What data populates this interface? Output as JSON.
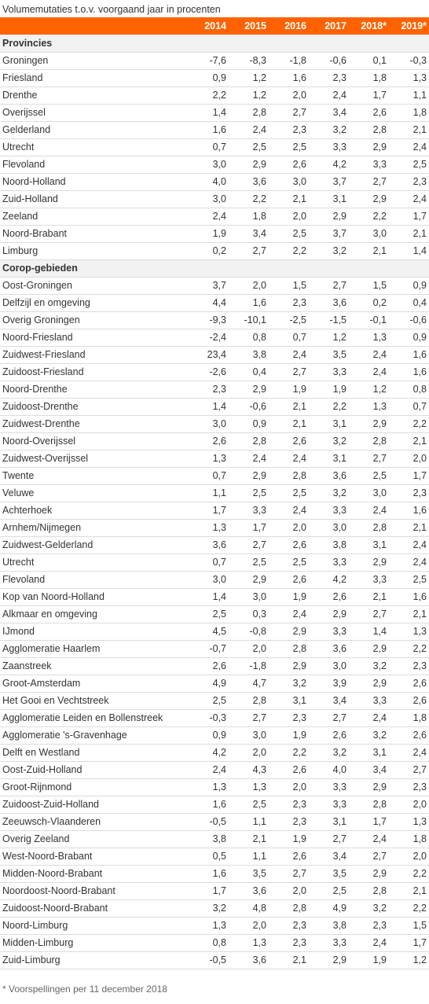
{
  "title": "Volumemutaties t.o.v. voorgaand jaar in procenten",
  "columns": [
    "2014",
    "2015",
    "2016",
    "2017",
    "2018*",
    "2019*"
  ],
  "sections": [
    {
      "label": "Provincies",
      "rows": [
        {
          "name": "Groningen",
          "values": [
            "-7,6",
            "-8,3",
            "-1,8",
            "-0,6",
            "0,1",
            "-0,3"
          ]
        },
        {
          "name": "Friesland",
          "values": [
            "0,9",
            "1,2",
            "1,6",
            "2,3",
            "1,8",
            "1,3"
          ]
        },
        {
          "name": "Drenthe",
          "values": [
            "2,2",
            "1,2",
            "2,0",
            "2,4",
            "1,7",
            "1,1"
          ]
        },
        {
          "name": "Overijssel",
          "values": [
            "1,4",
            "2,8",
            "2,7",
            "3,4",
            "2,6",
            "1,8"
          ]
        },
        {
          "name": "Gelderland",
          "values": [
            "1,6",
            "2,4",
            "2,3",
            "3,2",
            "2,8",
            "2,1"
          ]
        },
        {
          "name": "Utrecht",
          "values": [
            "0,7",
            "2,5",
            "2,5",
            "3,3",
            "2,9",
            "2,4"
          ]
        },
        {
          "name": "Flevoland",
          "values": [
            "3,0",
            "2,9",
            "2,6",
            "4,2",
            "3,3",
            "2,5"
          ]
        },
        {
          "name": "Noord-Holland",
          "values": [
            "4,0",
            "3,6",
            "3,0",
            "3,7",
            "2,7",
            "2,3"
          ]
        },
        {
          "name": "Zuid-Holland",
          "values": [
            "3,0",
            "2,2",
            "2,1",
            "3,1",
            "2,9",
            "2,4"
          ]
        },
        {
          "name": "Zeeland",
          "values": [
            "2,4",
            "1,8",
            "2,0",
            "2,9",
            "2,2",
            "1,7"
          ]
        },
        {
          "name": "Noord-Brabant",
          "values": [
            "1,9",
            "3,4",
            "2,5",
            "3,7",
            "3,0",
            "2,1"
          ]
        },
        {
          "name": "Limburg",
          "values": [
            "0,2",
            "2,7",
            "2,2",
            "3,2",
            "2,1",
            "1,4"
          ]
        }
      ]
    },
    {
      "label": "Corop-gebieden",
      "rows": [
        {
          "name": "Oost-Groningen",
          "values": [
            "3,7",
            "2,0",
            "1,5",
            "2,7",
            "1,5",
            "0,9"
          ]
        },
        {
          "name": "Delfzijl en omgeving",
          "values": [
            "4,4",
            "1,6",
            "2,3",
            "3,6",
            "0,2",
            "0,4"
          ]
        },
        {
          "name": "Overig Groningen",
          "values": [
            "-9,3",
            "-10,1",
            "-2,5",
            "-1,5",
            "-0,1",
            "-0,6"
          ]
        },
        {
          "name": "Noord-Friesland",
          "values": [
            "-2,4",
            "0,8",
            "0,7",
            "1,2",
            "1,3",
            "0,9"
          ]
        },
        {
          "name": "Zuidwest-Friesland",
          "values": [
            "23,4",
            "3,8",
            "2,4",
            "3,5",
            "2,4",
            "1,6"
          ]
        },
        {
          "name": "Zuidoost-Friesland",
          "values": [
            "-2,6",
            "0,4",
            "2,7",
            "3,3",
            "2,4",
            "1,6"
          ]
        },
        {
          "name": "Noord-Drenthe",
          "values": [
            "2,3",
            "2,9",
            "1,9",
            "1,9",
            "1,2",
            "0,8"
          ]
        },
        {
          "name": "Zuidoost-Drenthe",
          "values": [
            "1,4",
            "-0,6",
            "2,1",
            "2,2",
            "1,3",
            "0,7"
          ]
        },
        {
          "name": "Zuidwest-Drenthe",
          "values": [
            "3,0",
            "0,9",
            "2,1",
            "3,1",
            "2,9",
            "2,2"
          ]
        },
        {
          "name": "Noord-Overijssel",
          "values": [
            "2,6",
            "2,8",
            "2,6",
            "3,2",
            "2,8",
            "2,1"
          ]
        },
        {
          "name": "Zuidwest-Overijssel",
          "values": [
            "1,3",
            "2,4",
            "2,4",
            "3,1",
            "2,7",
            "2,0"
          ]
        },
        {
          "name": "Twente",
          "values": [
            "0,7",
            "2,9",
            "2,8",
            "3,6",
            "2,5",
            "1,7"
          ]
        },
        {
          "name": "Veluwe",
          "values": [
            "1,1",
            "2,5",
            "2,5",
            "3,2",
            "3,0",
            "2,3"
          ]
        },
        {
          "name": "Achterhoek",
          "values": [
            "1,7",
            "3,3",
            "2,4",
            "3,3",
            "2,4",
            "1,6"
          ]
        },
        {
          "name": "Arnhem/Nijmegen",
          "values": [
            "1,3",
            "1,7",
            "2,0",
            "3,0",
            "2,8",
            "2,1"
          ]
        },
        {
          "name": "Zuidwest-Gelderland",
          "values": [
            "3,6",
            "2,7",
            "2,6",
            "3,8",
            "3,1",
            "2,4"
          ]
        },
        {
          "name": "Utrecht",
          "values": [
            "0,7",
            "2,5",
            "2,5",
            "3,3",
            "2,9",
            "2,4"
          ]
        },
        {
          "name": "Flevoland",
          "values": [
            "3,0",
            "2,9",
            "2,6",
            "4,2",
            "3,3",
            "2,5"
          ]
        },
        {
          "name": "Kop van Noord-Holland",
          "values": [
            "1,4",
            "3,0",
            "1,9",
            "2,6",
            "2,1",
            "1,6"
          ]
        },
        {
          "name": "Alkmaar en omgeving",
          "values": [
            "2,5",
            "0,3",
            "2,4",
            "2,9",
            "2,7",
            "2,1"
          ]
        },
        {
          "name": "IJmond",
          "values": [
            "4,5",
            "-0,8",
            "2,9",
            "3,3",
            "1,4",
            "1,3"
          ]
        },
        {
          "name": "Agglomeratie Haarlem",
          "values": [
            "-0,7",
            "2,0",
            "2,8",
            "3,6",
            "2,9",
            "2,2"
          ]
        },
        {
          "name": "Zaanstreek",
          "values": [
            "2,6",
            "-1,8",
            "2,9",
            "3,0",
            "3,2",
            "2,3"
          ]
        },
        {
          "name": "Groot-Amsterdam",
          "values": [
            "4,9",
            "4,7",
            "3,2",
            "3,9",
            "2,9",
            "2,6"
          ]
        },
        {
          "name": "Het Gooi en Vechtstreek",
          "values": [
            "2,5",
            "2,8",
            "3,1",
            "3,4",
            "3,3",
            "2,6"
          ]
        },
        {
          "name": "Agglomeratie Leiden en Bollenstreek",
          "values": [
            "-0,3",
            "2,7",
            "2,3",
            "2,7",
            "2,4",
            "1,8"
          ]
        },
        {
          "name": "Agglomeratie 's-Gravenhage",
          "values": [
            "0,9",
            "3,0",
            "1,9",
            "2,6",
            "3,2",
            "2,6"
          ]
        },
        {
          "name": "Delft en Westland",
          "values": [
            "4,2",
            "2,0",
            "2,2",
            "3,2",
            "3,1",
            "2,4"
          ]
        },
        {
          "name": "Oost-Zuid-Holland",
          "values": [
            "2,4",
            "4,3",
            "2,6",
            "4,0",
            "3,4",
            "2,7"
          ]
        },
        {
          "name": "Groot-Rijnmond",
          "values": [
            "1,3",
            "1,3",
            "2,0",
            "3,3",
            "2,9",
            "2,3"
          ]
        },
        {
          "name": "Zuidoost-Zuid-Holland",
          "values": [
            "1,6",
            "2,5",
            "2,3",
            "3,3",
            "2,8",
            "2,0"
          ]
        },
        {
          "name": "Zeeuwsch-Vlaanderen",
          "values": [
            "-0,5",
            "1,1",
            "2,3",
            "3,1",
            "1,7",
            "1,3"
          ]
        },
        {
          "name": "Overig Zeeland",
          "values": [
            "3,8",
            "2,1",
            "1,9",
            "2,7",
            "2,4",
            "1,8"
          ]
        },
        {
          "name": "West-Noord-Brabant",
          "values": [
            "0,5",
            "1,1",
            "2,6",
            "3,4",
            "2,7",
            "2,0"
          ]
        },
        {
          "name": "Midden-Noord-Brabant",
          "values": [
            "1,6",
            "3,5",
            "2,7",
            "3,5",
            "2,9",
            "2,2"
          ]
        },
        {
          "name": "Noordoost-Noord-Brabant",
          "values": [
            "1,7",
            "3,6",
            "2,0",
            "2,5",
            "2,8",
            "2,1"
          ]
        },
        {
          "name": "Zuidoost-Noord-Brabant",
          "values": [
            "3,2",
            "4,8",
            "2,8",
            "4,9",
            "3,2",
            "2,2"
          ]
        },
        {
          "name": "Noord-Limburg",
          "values": [
            "1,3",
            "2,0",
            "2,3",
            "3,8",
            "2,3",
            "1,5"
          ]
        },
        {
          "name": "Midden-Limburg",
          "values": [
            "0,8",
            "1,3",
            "2,3",
            "3,3",
            "2,4",
            "1,7"
          ]
        },
        {
          "name": "Zuid-Limburg",
          "values": [
            "-0,5",
            "3,6",
            "2,1",
            "2,9",
            "1,9",
            "1,2"
          ]
        }
      ]
    }
  ],
  "footnote": "* Voorspellingen per 11 december 2018",
  "colors": {
    "header_bg": "#ff6200",
    "header_text": "#ffffff",
    "section_bg": "#f2f2f2"
  }
}
